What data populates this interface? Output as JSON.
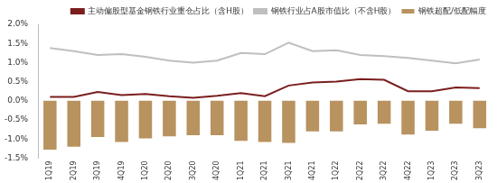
{
  "chart_data": {
    "type": "bar",
    "categories": [
      "1Q19",
      "2Q19",
      "3Q19",
      "4Q19",
      "1Q20",
      "2Q20",
      "3Q20",
      "4Q20",
      "1Q21",
      "2Q21",
      "3Q21",
      "4Q21",
      "1Q22",
      "2Q22",
      "3Q22",
      "4Q22",
      "1Q23",
      "2Q23",
      "3Q23"
    ],
    "series": [
      {
        "name": "钢铁超配/低配幅度",
        "type": "bar",
        "color": "#B8935F",
        "values": [
          -1.28,
          -1.2,
          -0.95,
          -1.08,
          -0.98,
          -0.93,
          -0.9,
          -0.9,
          -1.05,
          -1.08,
          -1.1,
          -0.8,
          -0.8,
          -0.62,
          -0.6,
          -0.88,
          -0.78,
          -0.6,
          -0.72
        ]
      },
      {
        "name": "主动偏股型基金钢铁行业重仓占比（含H股）",
        "type": "line",
        "color": "#7B1E1E",
        "values": [
          0.1,
          0.1,
          0.23,
          0.15,
          0.18,
          0.12,
          0.08,
          0.13,
          0.2,
          0.12,
          0.4,
          0.48,
          0.5,
          0.57,
          0.55,
          0.25,
          0.25,
          0.35,
          0.33
        ]
      },
      {
        "name": "钢铁行业占A股市值比（不含H股）",
        "type": "line",
        "color": "#BFBFBF",
        "values": [
          1.38,
          1.3,
          1.2,
          1.22,
          1.15,
          1.05,
          1.0,
          1.05,
          1.25,
          1.22,
          1.52,
          1.3,
          1.32,
          1.2,
          1.17,
          1.12,
          1.05,
          0.98,
          1.08
        ]
      }
    ],
    "ylim": [
      -1.5,
      2.0
    ],
    "yticks": [
      {
        "value": -1.5,
        "label": "-1.5%"
      },
      {
        "value": -1.0,
        "label": "-1.0%"
      },
      {
        "value": -0.5,
        "label": "-0.5%"
      },
      {
        "value": 0.0,
        "label": "0.0%"
      },
      {
        "value": 0.5,
        "label": "0.5%"
      },
      {
        "value": 1.0,
        "label": "1.0%"
      },
      {
        "value": 1.5,
        "label": "1.5%"
      },
      {
        "value": 2.0,
        "label": "2.0%"
      }
    ],
    "grid": false,
    "legend": "top"
  }
}
